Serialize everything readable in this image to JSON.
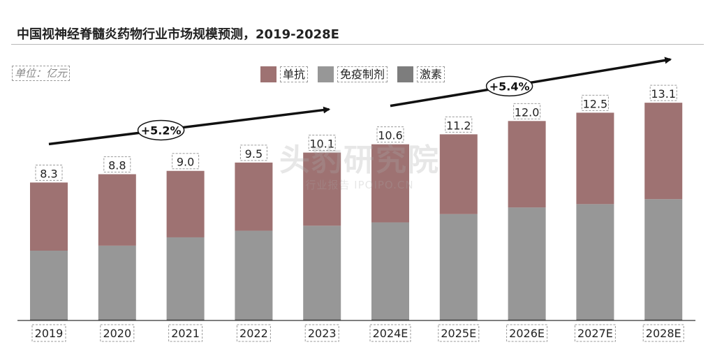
{
  "title": "中国视神经脊髓炎药物行业市场规模预测，2019-2028E",
  "unit": "单位：亿元",
  "watermark": {
    "brand": "头豹研究院",
    "sub": "行业报告 IPOIPO.CN"
  },
  "colors": {
    "单抗": "#9e7272",
    "免疫制剂": "#979797",
    "激素": "#7d7d7d"
  },
  "chart_data": {
    "type": "bar",
    "stacked": true,
    "categories": [
      "2019",
      "2020",
      "2021",
      "2022",
      "2023",
      "2024E",
      "2025E",
      "2026E",
      "2027E",
      "2028E"
    ],
    "totals": [
      "8.3",
      "8.8",
      "9.0",
      "9.5",
      "10.1",
      "10.6",
      "11.2",
      "12.0",
      "12.5",
      "13.1"
    ],
    "series": [
      {
        "name": "激素",
        "color": "#7d7d7d",
        "values": [
          0.1,
          0.1,
          0.1,
          0.1,
          0.1,
          0.1,
          0.1,
          0.1,
          0.1,
          0.1
        ]
      },
      {
        "name": "免疫制剂",
        "color": "#979797",
        "values": [
          4.1,
          4.4,
          4.9,
          5.3,
          5.6,
          5.8,
          6.3,
          6.7,
          6.9,
          7.2
        ]
      },
      {
        "name": "单抗",
        "color": "#9e7272",
        "values": [
          4.1,
          4.3,
          4.0,
          4.1,
          4.4,
          4.7,
          4.8,
          5.2,
          5.5,
          5.8
        ]
      }
    ],
    "ylim": [
      0,
      15.5
    ],
    "annotations": [
      {
        "label": "+5.2%",
        "from": "2019",
        "to": "2023"
      },
      {
        "label": "+5.4%",
        "from": "2024E",
        "to": "2028E"
      }
    ],
    "legend_position": "top-center",
    "grid": false
  }
}
